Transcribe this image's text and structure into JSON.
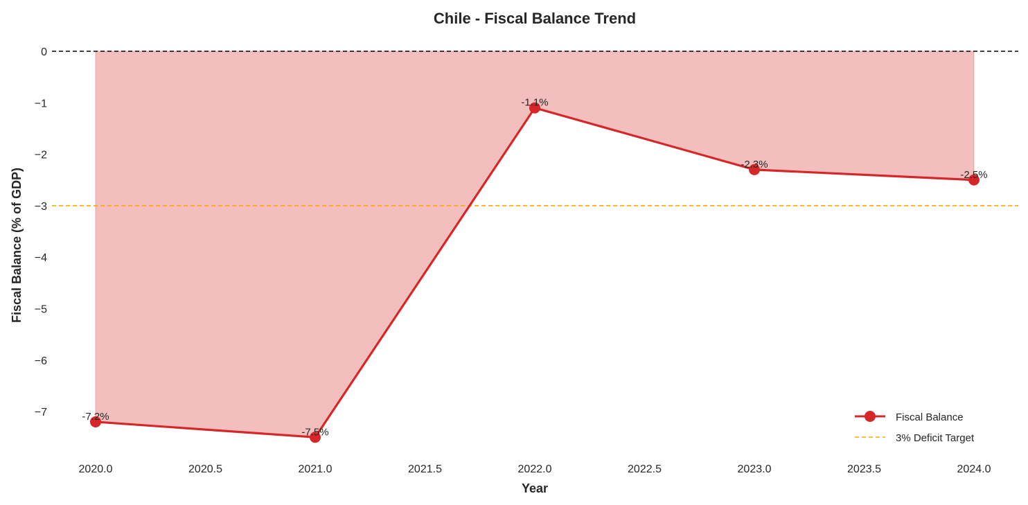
{
  "chart_data": {
    "type": "line",
    "title": "Chile - Fiscal Balance Trend",
    "xlabel": "Year",
    "ylabel": "Fiscal Balance (% of GDP)",
    "x": [
      2020,
      2021,
      2022,
      2023,
      2024
    ],
    "series": [
      {
        "name": "Fiscal Balance",
        "values": [
          -7.2,
          -7.5,
          -1.1,
          -2.3,
          -2.5
        ],
        "color": "#d62728",
        "fill_to_zero": true
      }
    ],
    "data_labels": [
      "-7.2%",
      "-7.5%",
      "-1.1%",
      "-2.3%",
      "-2.5%"
    ],
    "reference_lines": [
      {
        "y": 0,
        "color": "#000000",
        "style": "dashed"
      },
      {
        "name": "3% Deficit Target",
        "y": -3,
        "color": "#ffa500",
        "style": "dashed"
      }
    ],
    "xticks": [
      "2020.0",
      "2020.5",
      "2021.0",
      "2021.5",
      "2022.0",
      "2022.5",
      "2023.0",
      "2023.5",
      "2024.0"
    ],
    "yticks": [
      "0",
      "−1",
      "−2",
      "−3",
      "−4",
      "−5",
      "−6",
      "−7"
    ],
    "legend_position": "bottom-right",
    "grid": false
  }
}
